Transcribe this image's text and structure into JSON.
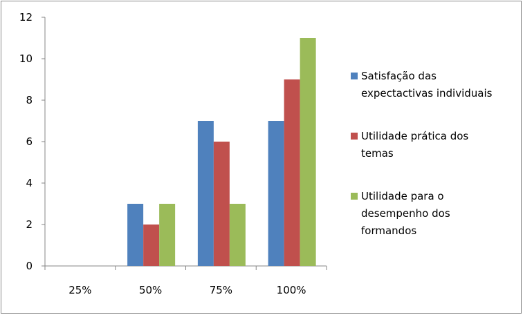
{
  "chart_data": {
    "type": "bar",
    "title": "",
    "xlabel": "",
    "ylabel": "",
    "categories": [
      "25%",
      "50%",
      "75%",
      "100%"
    ],
    "ylim": [
      0,
      12
    ],
    "yticks": [
      0,
      2,
      4,
      6,
      8,
      10,
      12
    ],
    "grid": false,
    "legend_position": "right",
    "series": [
      {
        "name": "Satisfação das expectactivas individuais",
        "lines": [
          "Satisfação das",
          "expectactivas individuais"
        ],
        "color": "#4F81BD",
        "values": [
          0,
          3,
          7,
          7
        ]
      },
      {
        "name": "Utilidade prática dos temas",
        "lines": [
          "Utilidade prática dos",
          "temas"
        ],
        "color": "#C0504D",
        "values": [
          0,
          2,
          6,
          9
        ]
      },
      {
        "name": "Utilidade para o desempenho dos formandos",
        "lines": [
          "Utilidade para o",
          "desempenho dos",
          "formandos"
        ],
        "color": "#9BBB59",
        "values": [
          0,
          3,
          3,
          11
        ]
      }
    ]
  }
}
